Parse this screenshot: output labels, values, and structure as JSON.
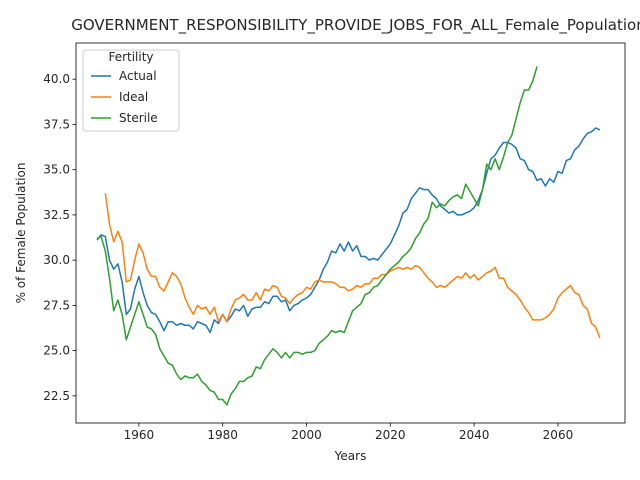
{
  "chart_data": {
    "type": "line",
    "title": "GOVERNMENT_RESPONSIBILITY_PROVIDE_JOBS_FOR_ALL_Female_Population_S",
    "xlabel": "Years",
    "ylabel": "% of Female Population",
    "xlim": [
      1945,
      2076
    ],
    "ylim": [
      21,
      42
    ],
    "xticks": [
      1960,
      1980,
      2000,
      2020,
      2040,
      2060
    ],
    "yticks": [
      22.5,
      25.0,
      27.5,
      30.0,
      32.5,
      35.0,
      37.5,
      40.0
    ],
    "ytick_labels": [
      "22.5",
      "25.0",
      "27.5",
      "30.0",
      "32.5",
      "35.0",
      "37.5",
      "40.0"
    ],
    "grid": false,
    "legend": {
      "title": "Fertility",
      "placement": "top-left",
      "entries": [
        "Actual",
        "Ideal",
        "Sterile"
      ]
    },
    "series": [
      {
        "name": "Actual",
        "color": "#1f77b4",
        "x": [
          1950,
          1951,
          1952,
          1953,
          1954,
          1955,
          1956,
          1957,
          1958,
          1959,
          1960,
          1961,
          1962,
          1963,
          1964,
          1965,
          1966,
          1967,
          1968,
          1969,
          1970,
          1971,
          1972,
          1973,
          1974,
          1975,
          1976,
          1977,
          1978,
          1979,
          1980,
          1981,
          1982,
          1983,
          1984,
          1985,
          1986,
          1987,
          1988,
          1989,
          1990,
          1991,
          1992,
          1993,
          1994,
          1995,
          1996,
          1997,
          1998,
          1999,
          2000,
          2001,
          2002,
          2003,
          2004,
          2005,
          2006,
          2007,
          2008,
          2009,
          2010,
          2011,
          2012,
          2013,
          2014,
          2015,
          2016,
          2017,
          2018,
          2019,
          2020,
          2021,
          2022,
          2023,
          2024,
          2025,
          2026,
          2027,
          2028,
          2029,
          2030,
          2031,
          2032,
          2033,
          2034,
          2035,
          2036,
          2037,
          2038,
          2039,
          2040,
          2041,
          2042,
          2043,
          2044,
          2045,
          2046,
          2047,
          2048,
          2049,
          2050,
          2051,
          2052,
          2053,
          2054,
          2055,
          2056,
          2057,
          2058,
          2059,
          2060,
          2061,
          2062,
          2063,
          2064,
          2065,
          2066,
          2067,
          2068,
          2069,
          2070
        ],
        "y": [
          31.1,
          31.4,
          31.3,
          30.0,
          29.5,
          29.8,
          28.8,
          27.0,
          27.3,
          28.4,
          29.1,
          28.2,
          27.5,
          27.1,
          27.0,
          26.6,
          26.1,
          26.6,
          26.6,
          26.4,
          26.5,
          26.4,
          26.4,
          26.2,
          26.6,
          26.5,
          26.4,
          26.0,
          26.7,
          26.5,
          27.0,
          26.6,
          26.9,
          27.3,
          27.2,
          27.5,
          26.9,
          27.3,
          27.4,
          27.4,
          27.7,
          27.6,
          28.0,
          28.0,
          27.7,
          27.8,
          27.2,
          27.5,
          27.6,
          27.8,
          27.9,
          28.1,
          28.5,
          28.9,
          29.5,
          29.9,
          30.5,
          30.4,
          30.9,
          30.5,
          31.0,
          30.5,
          30.8,
          30.2,
          30.2,
          30.0,
          30.1,
          30.0,
          30.3,
          30.6,
          30.9,
          31.4,
          31.9,
          32.6,
          32.8,
          33.4,
          33.7,
          34.0,
          33.9,
          33.9,
          33.6,
          33.4,
          33.0,
          32.8,
          32.6,
          32.7,
          32.5,
          32.5,
          32.6,
          32.7,
          32.9,
          33.3,
          33.9,
          34.8,
          35.6,
          35.8,
          36.2,
          36.5,
          36.5,
          36.4,
          36.2,
          35.6,
          35.5,
          35.0,
          34.9,
          34.4,
          34.5,
          34.1,
          34.5,
          34.3,
          34.9,
          34.8,
          35.5,
          35.6,
          36.1,
          36.3,
          36.7,
          37.0,
          37.1,
          37.3,
          37.2
        ]
      },
      {
        "name": "Ideal",
        "color": "#ff7f0e",
        "x": [
          1952,
          1953,
          1954,
          1955,
          1956,
          1957,
          1958,
          1959,
          1960,
          1961,
          1962,
          1963,
          1964,
          1965,
          1966,
          1967,
          1968,
          1969,
          1970,
          1971,
          1972,
          1973,
          1974,
          1975,
          1976,
          1977,
          1978,
          1979,
          1980,
          1981,
          1982,
          1983,
          1984,
          1985,
          1986,
          1987,
          1988,
          1989,
          1990,
          1991,
          1992,
          1993,
          1994,
          1995,
          1996,
          1997,
          1998,
          1999,
          2000,
          2001,
          2002,
          2003,
          2004,
          2005,
          2006,
          2007,
          2008,
          2009,
          2010,
          2011,
          2012,
          2013,
          2014,
          2015,
          2016,
          2017,
          2018,
          2019,
          2020,
          2021,
          2022,
          2023,
          2024,
          2025,
          2026,
          2027,
          2028,
          2029,
          2030,
          2031,
          2032,
          2033,
          2034,
          2035,
          2036,
          2037,
          2038,
          2039,
          2040,
          2041,
          2042,
          2043,
          2044,
          2045,
          2046,
          2047,
          2048,
          2049,
          2050,
          2051,
          2052,
          2053,
          2054,
          2055,
          2056,
          2057,
          2058,
          2059,
          2060,
          2061,
          2062,
          2063,
          2064,
          2065,
          2066,
          2067,
          2068,
          2069,
          2070
        ],
        "y": [
          33.7,
          32.0,
          31.0,
          31.6,
          31.0,
          28.8,
          28.9,
          30.0,
          30.9,
          30.4,
          29.5,
          29.1,
          29.1,
          28.5,
          28.3,
          28.8,
          29.3,
          29.1,
          28.7,
          27.9,
          27.4,
          27.0,
          27.5,
          27.3,
          27.4,
          27.0,
          27.4,
          26.6,
          27.0,
          26.6,
          27.3,
          27.8,
          27.9,
          28.1,
          27.8,
          27.8,
          28.2,
          27.8,
          28.4,
          28.3,
          28.6,
          28.5,
          28.0,
          27.9,
          27.6,
          27.9,
          28.1,
          28.2,
          28.5,
          28.4,
          28.8,
          28.9,
          28.8,
          28.8,
          28.8,
          28.7,
          28.5,
          28.5,
          28.3,
          28.4,
          28.6,
          28.5,
          28.7,
          28.7,
          29.0,
          29.0,
          29.2,
          29.2,
          29.4,
          29.5,
          29.6,
          29.5,
          29.6,
          29.5,
          29.7,
          29.6,
          29.3,
          29.0,
          28.8,
          28.5,
          28.6,
          28.5,
          28.7,
          28.9,
          29.1,
          29.0,
          29.3,
          29.0,
          29.2,
          28.9,
          29.1,
          29.3,
          29.4,
          29.6,
          29.0,
          29.0,
          28.5,
          28.3,
          28.1,
          27.8,
          27.4,
          27.1,
          26.7,
          26.7,
          26.7,
          26.8,
          27.0,
          27.3,
          27.9,
          28.2,
          28.4,
          28.6,
          28.2,
          28.1,
          27.5,
          27.3,
          26.5,
          26.3,
          25.7
        ]
      },
      {
        "name": "Sterile",
        "color": "#2ca02c",
        "x": [
          1950,
          1951,
          1952,
          1953,
          1954,
          1955,
          1956,
          1957,
          1958,
          1959,
          1960,
          1961,
          1962,
          1963,
          1964,
          1965,
          1966,
          1967,
          1968,
          1969,
          1970,
          1971,
          1972,
          1973,
          1974,
          1975,
          1976,
          1977,
          1978,
          1979,
          1980,
          1981,
          1982,
          1983,
          1984,
          1985,
          1986,
          1987,
          1988,
          1989,
          1990,
          1991,
          1992,
          1993,
          1994,
          1995,
          1996,
          1997,
          1998,
          1999,
          2000,
          2001,
          2002,
          2003,
          2004,
          2005,
          2006,
          2007,
          2008,
          2009,
          2010,
          2011,
          2012,
          2013,
          2014,
          2015,
          2016,
          2017,
          2018,
          2019,
          2020,
          2021,
          2022,
          2023,
          2024,
          2025,
          2026,
          2027,
          2028,
          2029,
          2030,
          2031,
          2032,
          2033,
          2034,
          2035,
          2036,
          2037,
          2038,
          2039,
          2040,
          2041,
          2042,
          2043,
          2044,
          2045,
          2046,
          2047,
          2048,
          2049,
          2050,
          2051,
          2052,
          2053,
          2054,
          2055
        ],
        "y": [
          31.2,
          31.3,
          30.5,
          29.0,
          27.2,
          27.8,
          27.0,
          25.6,
          26.3,
          27.0,
          27.7,
          27.0,
          26.3,
          26.2,
          25.9,
          25.1,
          24.7,
          24.3,
          24.2,
          23.7,
          23.4,
          23.6,
          23.5,
          23.5,
          23.7,
          23.3,
          23.1,
          22.8,
          22.7,
          22.3,
          22.3,
          22.0,
          22.6,
          22.9,
          23.3,
          23.3,
          23.5,
          23.6,
          24.1,
          24.0,
          24.5,
          24.8,
          25.1,
          24.9,
          24.6,
          24.9,
          24.6,
          24.9,
          24.9,
          24.8,
          24.9,
          24.9,
          25.0,
          25.4,
          25.6,
          25.8,
          26.1,
          26.0,
          26.1,
          26.0,
          26.6,
          27.2,
          27.4,
          27.6,
          28.1,
          28.2,
          28.5,
          28.6,
          28.9,
          29.2,
          29.5,
          29.7,
          29.9,
          30.2,
          30.4,
          30.7,
          31.2,
          31.5,
          32.0,
          32.3,
          33.2,
          32.9,
          33.1,
          33.0,
          33.3,
          33.5,
          33.6,
          33.4,
          34.2,
          33.8,
          33.4,
          33.0,
          33.9,
          35.3,
          35.0,
          35.6,
          35.0,
          35.7,
          36.5,
          36.9,
          37.8,
          38.7,
          39.4,
          39.4,
          39.9,
          40.7
        ]
      }
    ]
  }
}
